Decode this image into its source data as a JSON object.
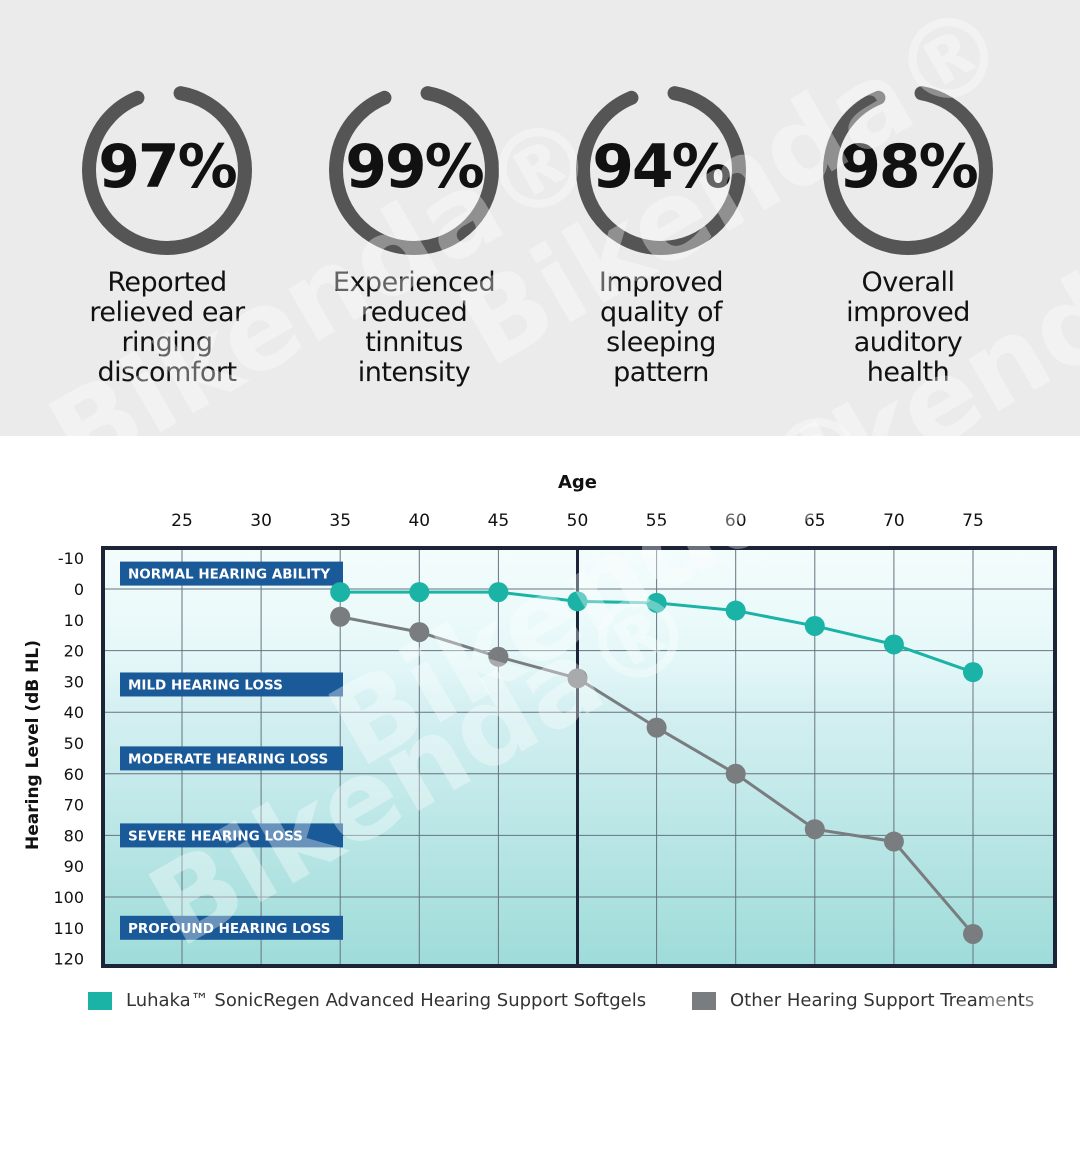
{
  "stats": [
    {
      "value": "97%",
      "percent": 97,
      "description": "Reported\nrelieved ear\nringing\ndiscomfort"
    },
    {
      "value": "99%",
      "percent": 99,
      "description": "Experienced\nreduced\ntinnitus\nintensity"
    },
    {
      "value": "94%",
      "percent": 94,
      "description": "Improved\nquality of\nsleeping\npattern"
    },
    {
      "value": "98%",
      "percent": 98,
      "description": "Overall\nimproved\nauditory\nhealth"
    }
  ],
  "watermark": "Bikenda®",
  "chart_data": {
    "type": "line",
    "xlabel": "Age",
    "ylabel": "Hearing Level (dB HL)",
    "x_ticks": [
      25,
      30,
      35,
      40,
      45,
      50,
      55,
      60,
      65,
      70,
      75
    ],
    "y_ticks": [
      -10,
      0,
      10,
      20,
      30,
      40,
      50,
      60,
      70,
      80,
      90,
      100,
      110,
      120
    ],
    "xlim": [
      20,
      80
    ],
    "ylim": [
      -12,
      123
    ],
    "y_inverted": true,
    "x_axis_position": "top",
    "grid": true,
    "legend_position": "bottom",
    "zones": [
      {
        "label": "NORMAL HEARING ABILITY",
        "level": -5
      },
      {
        "label": "MILD HEARING LOSS",
        "level": 31
      },
      {
        "label": "MODERATE HEARING LOSS",
        "level": 55
      },
      {
        "label": "SEVERE HEARING LOSS",
        "level": 80
      },
      {
        "label": "PROFOUND HEARING LOSS",
        "level": 110
      }
    ],
    "series": [
      {
        "name": "Luhaka™ SonicRegen Advanced Hearing Support Softgels",
        "color": "#1ab3a6",
        "x": [
          35,
          40,
          45,
          50,
          55,
          60,
          65,
          70,
          75
        ],
        "y": [
          1,
          1,
          1,
          4,
          4.5,
          7,
          12,
          18,
          27
        ]
      },
      {
        "name": "Other Hearing Support Treaments",
        "color": "#7a7d80",
        "x": [
          35,
          40,
          45,
          50,
          55,
          60,
          65,
          70,
          75
        ],
        "y": [
          9,
          14,
          22,
          29,
          45,
          60,
          78,
          82,
          112
        ]
      }
    ]
  },
  "colors": {
    "ring": "#555555",
    "zone_label_bg": "#1b5a98",
    "frame": "#1c2438"
  }
}
